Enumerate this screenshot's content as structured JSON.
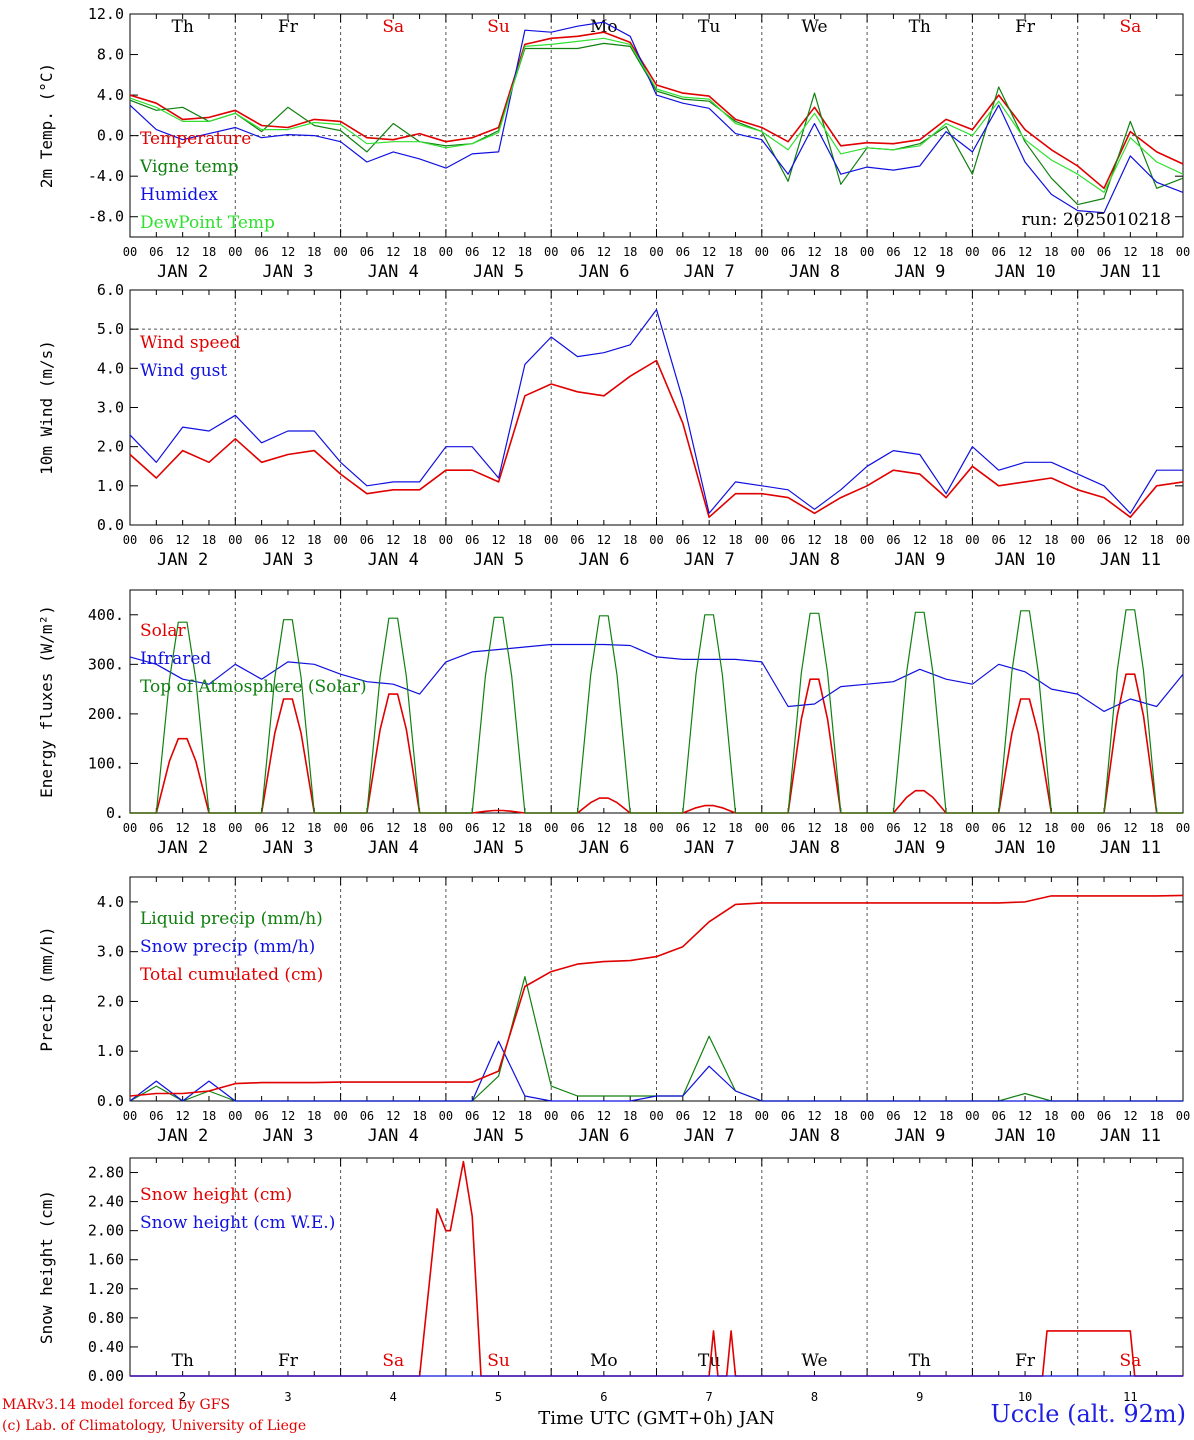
{
  "days": [
    "JAN 2",
    "JAN 3",
    "JAN 4",
    "JAN 5",
    "JAN 6",
    "JAN 7",
    "JAN 8",
    "JAN 9",
    "JAN 10",
    "JAN 11"
  ],
  "weekdays": [
    "Th",
    "Fr",
    "Sa",
    "Su",
    "Mo",
    "Tu",
    "We",
    "Th",
    "Fr",
    "Sa"
  ],
  "weekday_colors": [
    "#000000",
    "#000000",
    "#e00000",
    "#e00000",
    "#000000",
    "#000000",
    "#000000",
    "#000000",
    "#000000",
    "#e00000"
  ],
  "hour_ticks": [
    "00",
    "06",
    "12",
    "18"
  ],
  "end_tick": "00",
  "colors": {
    "red": "#e00000",
    "green": "#108010",
    "blue": "#1010e0",
    "lightgreen": "#30e030",
    "black": "#000000"
  },
  "run_label": "run: 2025010218",
  "footer": {
    "credit1": "MARv3.14 model forced by GFS",
    "credit2": "(c) Lab. of Climatology, University of Liege",
    "station": "Uccle (alt. 92m)",
    "xlabel": "Time UTC (GMT+0h) JAN",
    "day_numbers": [
      "2",
      "3",
      "4",
      "5",
      "6",
      "7",
      "8",
      "9",
      "10",
      "11"
    ]
  },
  "chart_data": [
    {
      "type": "line",
      "ylabel": "2m Temp. (°C)",
      "ylim": [
        -10,
        12
      ],
      "yticks": [
        "-8.0",
        "-4.0",
        "0.0",
        "4.0",
        "8.0",
        "12.0"
      ],
      "ytick_values": [
        -8,
        -4,
        0,
        4,
        8,
        12
      ],
      "dashed_y": 0,
      "x_hours": [
        0,
        6,
        12,
        18,
        24,
        30,
        36,
        42,
        48,
        54,
        60,
        66,
        72,
        78,
        84,
        90,
        96,
        102,
        108,
        114,
        120,
        126,
        132,
        138,
        144,
        150,
        156,
        162,
        168,
        174,
        180,
        186,
        192,
        198,
        204,
        210,
        216,
        222,
        228,
        234,
        240
      ],
      "series": [
        {
          "name": "Temperature",
          "color": "red",
          "values": [
            4.0,
            3.2,
            1.6,
            1.8,
            2.5,
            1.0,
            0.8,
            1.6,
            1.4,
            -0.2,
            -0.4,
            0.2,
            -0.6,
            -0.2,
            0.8,
            9.0,
            9.6,
            9.8,
            10.2,
            9.2,
            5.0,
            4.2,
            3.9,
            1.6,
            0.8,
            -0.6,
            2.8,
            -1.0,
            -0.7,
            -0.8,
            -0.4,
            1.6,
            0.6,
            4.0,
            0.6,
            -1.4,
            -3.0,
            -5.2,
            0.4,
            -1.6,
            -2.8
          ]
        },
        {
          "name": "Vigne temp",
          "color": "green",
          "values": [
            3.5,
            2.5,
            2.8,
            1.4,
            2.2,
            0.4,
            2.8,
            1.0,
            0.5,
            -1.6,
            1.2,
            -0.6,
            -1.0,
            -0.8,
            0.5,
            8.6,
            8.6,
            8.6,
            9.1,
            8.8,
            4.4,
            3.6,
            3.4,
            1.4,
            0.4,
            -4.5,
            4.2,
            -4.8,
            -1.2,
            -1.4,
            -0.8,
            0.9,
            -3.8,
            4.8,
            -0.6,
            -4.2,
            -6.8,
            -6.2,
            1.4,
            -5.2,
            -4.2
          ]
        },
        {
          "name": "Humidex",
          "color": "blue",
          "values": [
            3.0,
            0.6,
            -0.4,
            0.2,
            0.8,
            -0.2,
            0.1,
            0.0,
            -0.6,
            -2.6,
            -1.6,
            -2.3,
            -3.2,
            -1.8,
            -1.6,
            10.4,
            10.2,
            10.8,
            11.2,
            9.8,
            4.0,
            3.2,
            2.7,
            0.2,
            -0.4,
            -3.8,
            1.2,
            -3.8,
            -3.1,
            -3.4,
            -3.0,
            0.4,
            -1.6,
            3.0,
            -2.6,
            -5.8,
            -7.4,
            -7.6,
            -2.0,
            -4.6,
            -5.6
          ]
        },
        {
          "name": "DewPoint Temp",
          "color": "lightgreen",
          "values": [
            3.7,
            2.8,
            1.4,
            1.4,
            2.2,
            0.6,
            0.6,
            1.3,
            1.1,
            -0.8,
            -0.6,
            -0.6,
            -1.2,
            -0.8,
            0.3,
            8.8,
            9.0,
            9.3,
            9.6,
            9.0,
            4.6,
            3.8,
            3.6,
            1.2,
            0.4,
            -1.4,
            2.2,
            -1.8,
            -1.2,
            -1.4,
            -1.0,
            1.2,
            0.0,
            3.4,
            -0.4,
            -2.4,
            -3.8,
            -5.6,
            -0.2,
            -2.6,
            -3.8
          ]
        }
      ]
    },
    {
      "type": "line",
      "ylabel": "10m Wind (m/s)",
      "ylim": [
        0,
        6
      ],
      "yticks": [
        "0.0",
        "1.0",
        "2.0",
        "3.0",
        "4.0",
        "5.0",
        "6.0"
      ],
      "ytick_values": [
        0,
        1,
        2,
        3,
        4,
        5,
        6
      ],
      "dashed_y": 5,
      "x_hours": [
        0,
        6,
        12,
        18,
        24,
        30,
        36,
        42,
        48,
        54,
        60,
        66,
        72,
        78,
        84,
        90,
        96,
        102,
        108,
        114,
        120,
        126,
        132,
        138,
        144,
        150,
        156,
        162,
        168,
        174,
        180,
        186,
        192,
        198,
        204,
        210,
        216,
        222,
        228,
        234,
        240
      ],
      "series": [
        {
          "name": "Wind speed",
          "color": "red",
          "values": [
            1.8,
            1.2,
            1.9,
            1.6,
            2.2,
            1.6,
            1.8,
            1.9,
            1.3,
            0.8,
            0.9,
            0.9,
            1.4,
            1.4,
            1.1,
            3.3,
            3.6,
            3.4,
            3.3,
            3.8,
            4.2,
            2.6,
            0.2,
            0.8,
            0.8,
            0.7,
            0.3,
            0.7,
            1.0,
            1.4,
            1.3,
            0.7,
            1.5,
            1.0,
            1.1,
            1.2,
            0.9,
            0.7,
            0.2,
            1.0,
            1.1
          ]
        },
        {
          "name": "Wind gust",
          "color": "blue",
          "values": [
            2.3,
            1.6,
            2.5,
            2.4,
            2.8,
            2.1,
            2.4,
            2.4,
            1.6,
            1.0,
            1.1,
            1.1,
            2.0,
            2.0,
            1.2,
            4.1,
            4.8,
            4.3,
            4.4,
            4.6,
            5.5,
            3.2,
            0.3,
            1.1,
            1.0,
            0.9,
            0.4,
            0.9,
            1.5,
            1.9,
            1.8,
            0.8,
            2.0,
            1.4,
            1.6,
            1.6,
            1.3,
            1.0,
            0.3,
            1.4,
            1.4
          ]
        }
      ]
    },
    {
      "type": "line",
      "ylabel": "Energy fluxes (W/m²)",
      "ylim": [
        0,
        450
      ],
      "yticks": [
        "0.",
        "100.",
        "200.",
        "300.",
        "400."
      ],
      "ytick_values": [
        0,
        100,
        200,
        300,
        400
      ],
      "dashed_y": null,
      "series": [
        {
          "name": "Solar",
          "color": "red",
          "peak_hours": [
            12,
            36,
            60,
            84,
            108,
            132,
            156,
            180,
            204,
            228
          ],
          "values": [
            150,
            230,
            240,
            5,
            30,
            15,
            270,
            45,
            230,
            280
          ]
        },
        {
          "name": "Infrared",
          "color": "blue",
          "x_hours": [
            0,
            6,
            12,
            18,
            24,
            30,
            36,
            42,
            48,
            54,
            60,
            66,
            72,
            78,
            84,
            90,
            96,
            102,
            108,
            114,
            120,
            126,
            132,
            138,
            144,
            150,
            156,
            162,
            168,
            174,
            180,
            186,
            192,
            198,
            204,
            210,
            216,
            222,
            228,
            234,
            240
          ],
          "values": [
            315,
            300,
            270,
            260,
            300,
            270,
            305,
            300,
            280,
            265,
            260,
            240,
            305,
            325,
            330,
            335,
            340,
            340,
            340,
            338,
            315,
            310,
            310,
            310,
            305,
            215,
            220,
            255,
            260,
            265,
            290,
            270,
            260,
            300,
            285,
            250,
            240,
            205,
            230,
            215,
            280
          ]
        },
        {
          "name": "Top of Atmosphere (Solar)",
          "color": "green",
          "peak_hours": [
            12,
            36,
            60,
            84,
            108,
            132,
            156,
            180,
            204,
            228
          ],
          "values": [
            385,
            390,
            393,
            395,
            398,
            400,
            403,
            405,
            408,
            410
          ]
        }
      ]
    },
    {
      "type": "line",
      "ylabel": "Precip (mm/h)",
      "ylim": [
        0,
        4.5
      ],
      "yticks": [
        "0.0",
        "1.0",
        "2.0",
        "3.0",
        "4.0"
      ],
      "ytick_values": [
        0,
        1,
        2,
        3,
        4
      ],
      "dashed_y": null,
      "x_hours": [
        0,
        6,
        12,
        18,
        24,
        30,
        36,
        42,
        48,
        54,
        60,
        66,
        72,
        78,
        84,
        90,
        96,
        102,
        108,
        114,
        120,
        126,
        132,
        138,
        144,
        150,
        156,
        162,
        168,
        174,
        180,
        186,
        192,
        198,
        204,
        210,
        216,
        222,
        228,
        234,
        240
      ],
      "series": [
        {
          "name": "Liquid precip (mm/h)",
          "color": "green",
          "values": [
            0.0,
            0.3,
            0.0,
            0.2,
            0.0,
            0.0,
            0.0,
            0.0,
            0.0,
            0.0,
            0.0,
            0.0,
            0.0,
            0.0,
            0.5,
            2.5,
            0.3,
            0.1,
            0.1,
            0.1,
            0.1,
            0.1,
            1.3,
            0.2,
            0.0,
            0.0,
            0.0,
            0.0,
            0.0,
            0.0,
            0.0,
            0.0,
            0.0,
            0.0,
            0.15,
            0.0,
            0.0,
            0.0,
            0.0,
            0.0,
            0.0
          ]
        },
        {
          "name": "Snow precip (mm/h)",
          "color": "blue",
          "values": [
            0.0,
            0.4,
            0.0,
            0.4,
            0.0,
            0.0,
            0.0,
            0.0,
            0.0,
            0.0,
            0.0,
            0.0,
            0.0,
            0.0,
            1.2,
            0.1,
            0.0,
            0.0,
            0.0,
            0.0,
            0.1,
            0.1,
            0.7,
            0.2,
            0.0,
            0.0,
            0.0,
            0.0,
            0.0,
            0.0,
            0.0,
            0.0,
            0.0,
            0.0,
            0.0,
            0.0,
            0.0,
            0.0,
            0.0,
            0.0,
            0.0
          ]
        },
        {
          "name": "Total cumulated (cm)",
          "color": "red",
          "values": [
            0.1,
            0.15,
            0.15,
            0.2,
            0.35,
            0.37,
            0.37,
            0.37,
            0.38,
            0.38,
            0.38,
            0.38,
            0.38,
            0.38,
            0.6,
            2.3,
            2.6,
            2.75,
            2.8,
            2.82,
            2.9,
            3.1,
            3.6,
            3.95,
            3.98,
            3.98,
            3.98,
            3.98,
            3.98,
            3.98,
            3.98,
            3.98,
            3.98,
            3.98,
            4.0,
            4.12,
            4.12,
            4.12,
            4.12,
            4.12,
            4.13
          ]
        }
      ]
    },
    {
      "type": "line",
      "ylabel": "Snow height (cm)",
      "ylim": [
        0,
        3.0
      ],
      "yticks": [
        "0.00",
        "0.40",
        "0.80",
        "1.20",
        "1.60",
        "2.00",
        "2.40",
        "2.80"
      ],
      "ytick_values": [
        0,
        0.4,
        0.8,
        1.2,
        1.6,
        2.0,
        2.4,
        2.8
      ],
      "dashed_y": null,
      "series": [
        {
          "name": "Snow height (cm)",
          "color": "red",
          "x_hours": [
            0,
            66,
            70,
            72,
            73,
            76,
            78,
            80,
            84,
            132,
            133,
            134,
            136,
            137,
            138,
            208,
            209,
            228,
            229,
            240
          ],
          "values": [
            0,
            0,
            2.3,
            2.0,
            2.0,
            2.95,
            2.2,
            0,
            0,
            0,
            0.62,
            0,
            0,
            0.62,
            0,
            0,
            0.62,
            0.62,
            0,
            0
          ]
        },
        {
          "name": "Snow height (cm W.E.)",
          "color": "blue",
          "x_hours": [
            0,
            240
          ],
          "values": [
            0,
            0
          ]
        }
      ]
    }
  ]
}
